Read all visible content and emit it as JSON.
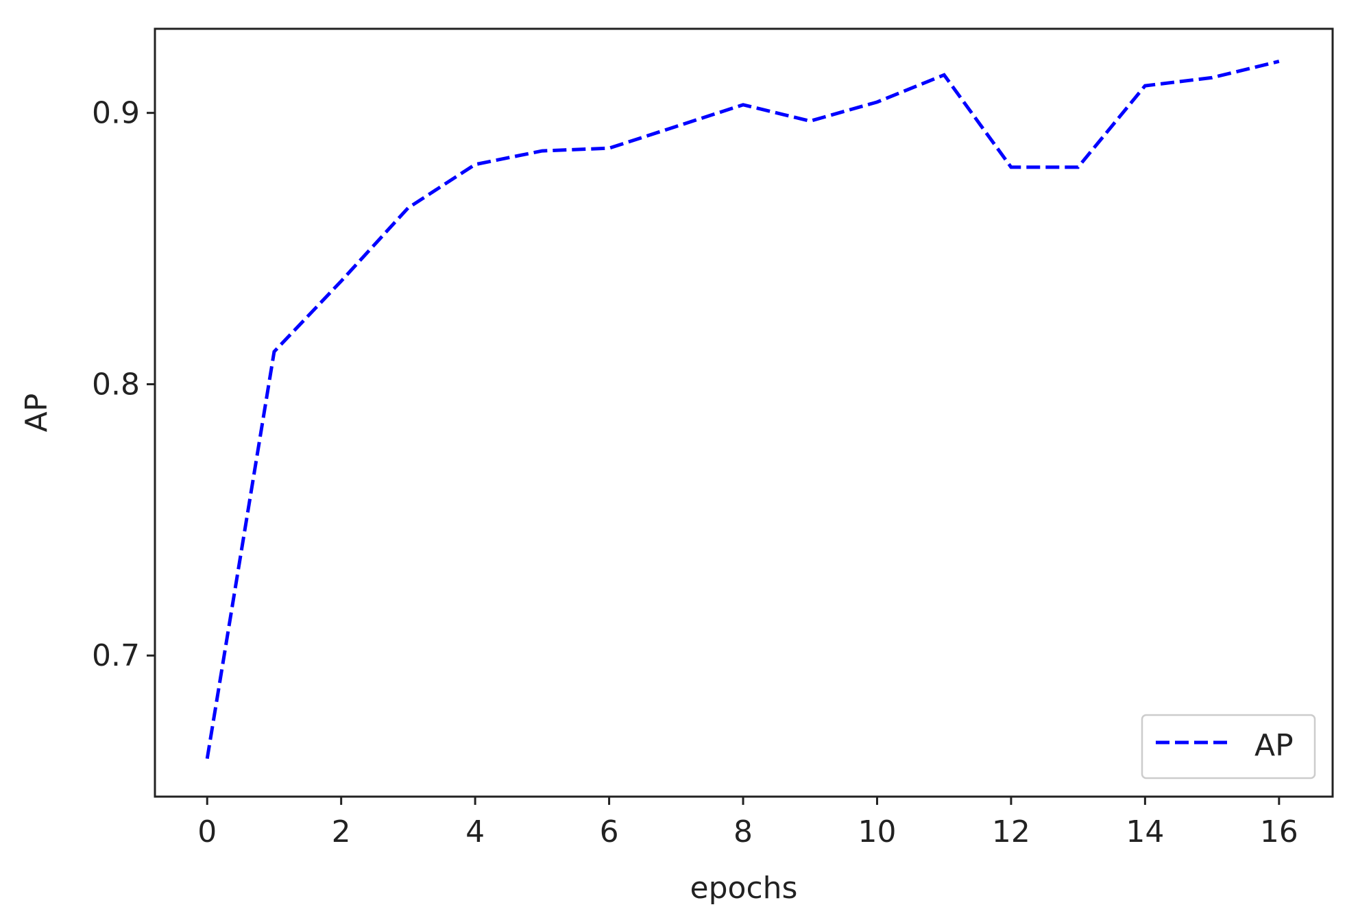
{
  "chart_data": {
    "type": "line",
    "title": "",
    "xlabel": "epochs",
    "ylabel": "AP",
    "xlim": [
      -0.78,
      16.8
    ],
    "ylim": [
      0.648,
      0.931
    ],
    "xticks": [
      0,
      2,
      4,
      6,
      8,
      10,
      12,
      14,
      16
    ],
    "xtick_labels": [
      "0",
      "2",
      "4",
      "6",
      "8",
      "10",
      "12",
      "14",
      "16"
    ],
    "yticks": [
      0.7,
      0.8,
      0.9
    ],
    "ytick_labels": [
      "0.7",
      "0.8",
      "0.9"
    ],
    "grid": false,
    "legend_position": "lower-right",
    "series": [
      {
        "name": "AP",
        "color": "#0000ff",
        "line_style": "dashed",
        "x": [
          0,
          1,
          2,
          3,
          4,
          5,
          6,
          7,
          8,
          9,
          10,
          11,
          12,
          13,
          14,
          15,
          16
        ],
        "y": [
          0.662,
          0.812,
          0.838,
          0.865,
          0.881,
          0.886,
          0.887,
          0.895,
          0.903,
          0.897,
          0.904,
          0.914,
          0.88,
          0.88,
          0.91,
          0.913,
          0.919
        ]
      }
    ]
  }
}
